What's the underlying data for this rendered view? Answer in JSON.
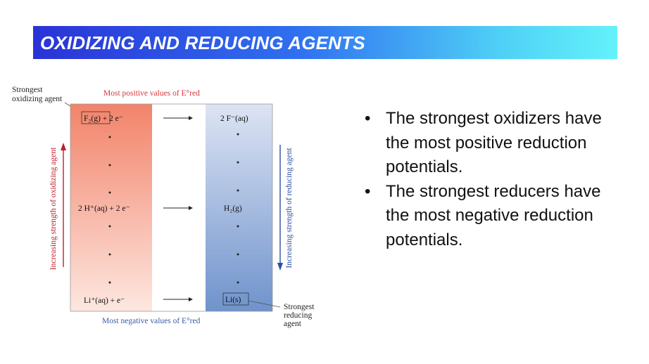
{
  "title": "OXIDIZING AND REDUCING AGENTS",
  "diagram": {
    "strongest_oxidizing_label": [
      "Strongest",
      "oxidizing agent"
    ],
    "top_caption": "Most positive values of E°red",
    "bottom_caption": "Most negative values of E°red",
    "left_axis_label": "Increasing strength of oxidizing agent",
    "right_axis_label": "Increasing strength of reducing agent",
    "strongest_reducing_label": [
      "Strongest",
      "reducing",
      "agent"
    ],
    "rows": [
      {
        "left": "F₂(g) + 2 e⁻",
        "right": "2 F⁻(aq)"
      },
      {
        "left": "2 H⁺(aq) + 2 e⁻",
        "right": "H₂(g)"
      },
      {
        "left": "Li⁺(aq) + e⁻",
        "right": "Li(s)"
      }
    ],
    "colors": {
      "oxidizer_top": "#f2836a",
      "reducer_bottom": "#6f93cc",
      "caption": "#d6343a",
      "arrow_axis": "#c21d2a"
    }
  },
  "bullets": [
    "The strongest oxidizers have the most positive reduction potentials.",
    "The strongest reducers have the most negative reduction potentials."
  ]
}
